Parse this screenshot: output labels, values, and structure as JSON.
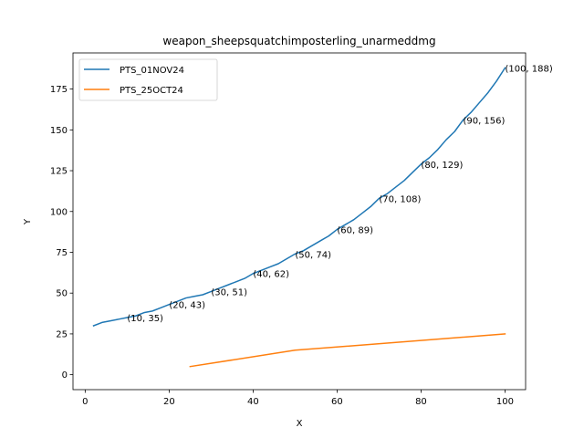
{
  "chart_data": {
    "type": "line",
    "title": "weapon_sheepsquatchimposterling_unarmeddmg",
    "xlabel": "X",
    "ylabel": "Y",
    "xlim": [
      -2.9,
      104.9
    ],
    "ylim": [
      -9.15,
      197.15
    ],
    "xticks": [
      0,
      20,
      40,
      60,
      80,
      100
    ],
    "yticks": [
      0,
      25,
      50,
      75,
      100,
      125,
      150,
      175
    ],
    "grid": false,
    "legend_position": "top-left",
    "series": [
      {
        "name": "PTS_01NOV24",
        "color": "#1f77b4",
        "x": [
          2,
          4,
          6,
          8,
          10,
          12,
          14,
          16,
          18,
          20,
          22,
          24,
          26,
          28,
          30,
          32,
          34,
          36,
          38,
          40,
          42,
          44,
          46,
          48,
          50,
          52,
          54,
          56,
          58,
          60,
          62,
          64,
          66,
          68,
          70,
          72,
          74,
          76,
          78,
          80,
          82,
          84,
          86,
          88,
          90,
          92,
          94,
          96,
          98,
          100
        ],
        "y": [
          30,
          32,
          33,
          34,
          35,
          36,
          38,
          39,
          41,
          43,
          45,
          47,
          48,
          49,
          51,
          53,
          55,
          57,
          59,
          62,
          64,
          66,
          68,
          71,
          74,
          76,
          79,
          82,
          85,
          89,
          92,
          95,
          99,
          103,
          108,
          111,
          115,
          119,
          124,
          129,
          133,
          138,
          144,
          149,
          156,
          161,
          167,
          173,
          180,
          188
        ]
      },
      {
        "name": "PTS_25OCT24",
        "color": "#ff7f0e",
        "x": [
          25,
          50,
          100
        ],
        "y": [
          5,
          15,
          25
        ]
      }
    ],
    "annotations": [
      {
        "text": "(10, 35)",
        "x": 10,
        "y": 35
      },
      {
        "text": "(20, 43)",
        "x": 20,
        "y": 43
      },
      {
        "text": "(30, 51)",
        "x": 30,
        "y": 51
      },
      {
        "text": "(40, 62)",
        "x": 40,
        "y": 62
      },
      {
        "text": "(50, 74)",
        "x": 50,
        "y": 74
      },
      {
        "text": "(60, 89)",
        "x": 60,
        "y": 89
      },
      {
        "text": "(70, 108)",
        "x": 70,
        "y": 108
      },
      {
        "text": "(80, 129)",
        "x": 80,
        "y": 129
      },
      {
        "text": "(90, 156)",
        "x": 90,
        "y": 156
      },
      {
        "text": "(100, 188)",
        "x": 100,
        "y": 188
      }
    ]
  }
}
